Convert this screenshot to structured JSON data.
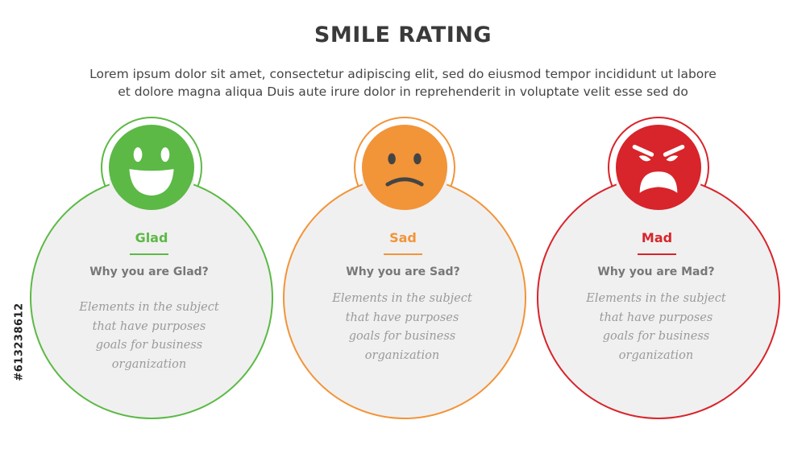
{
  "header": {
    "title": "SMILE RATING",
    "subtitle_lines": [
      "Lorem ipsum dolor sit amet, consectetur adipiscing elit, sed do eiusmod tempor incididunt ut labore",
      "et dolore magna aliqua Duis aute irure dolor in reprehenderit in voluptate velit esse sed do"
    ]
  },
  "cards": [
    {
      "label": "Glad",
      "question": "Why you are Glad?",
      "desc_lines": [
        "Elements in the subject",
        "that have purposes",
        "goals for business",
        "organization"
      ],
      "color": "#5cb946",
      "icon": "happy-face-icon"
    },
    {
      "label": "Sad",
      "question": "Why you are Sad?",
      "desc_lines": [
        "Elements in the subject",
        "that have purposes",
        "goals for business",
        "organization"
      ],
      "color": "#f29438",
      "icon": "sad-face-icon"
    },
    {
      "label": "Mad",
      "question": "Why you are Mad?",
      "desc_lines": [
        "Elements in the subject",
        "that have purposes",
        "goals for business",
        "organization"
      ],
      "color": "#d8242b",
      "icon": "angry-face-icon"
    }
  ],
  "side_code": "#613238612"
}
